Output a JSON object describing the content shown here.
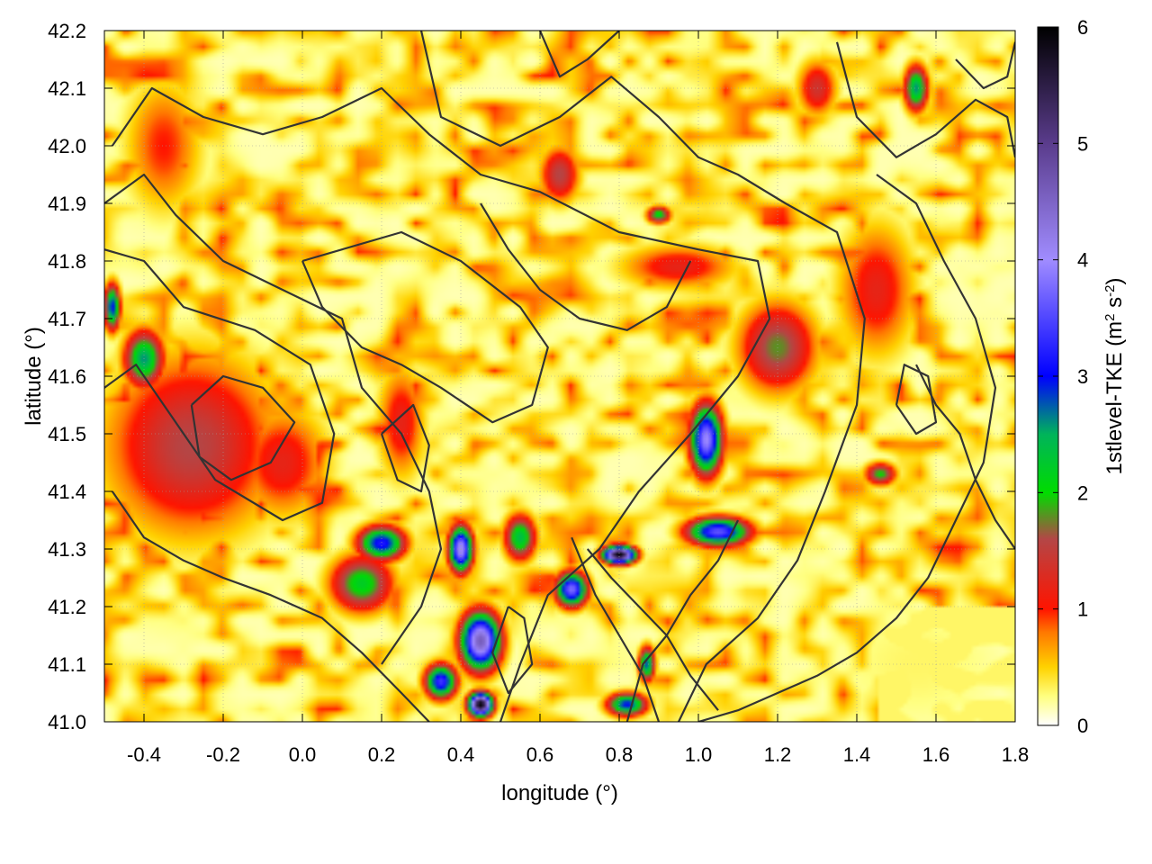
{
  "chart_data": {
    "type": "heatmap",
    "xlabel": "longitude (°)",
    "ylabel": "latitude (°)",
    "colorbar_label": "1stlevel-TKE (m",
    "colorbar_label_sup1": "2",
    "colorbar_label_mid": " s",
    "colorbar_label_sup2": "-2",
    "colorbar_label_end": ")",
    "xlim": [
      -0.5,
      1.8
    ],
    "ylim": [
      41.0,
      42.2
    ],
    "clim": [
      0,
      6
    ],
    "x_ticks": [
      "-0.4",
      "-0.2",
      "0.0",
      "0.2",
      "0.4",
      "0.6",
      "0.8",
      "1.0",
      "1.2",
      "1.4",
      "1.6",
      "1.8"
    ],
    "x_tick_values": [
      -0.4,
      -0.2,
      0.0,
      0.2,
      0.4,
      0.6,
      0.8,
      1.0,
      1.2,
      1.4,
      1.6,
      1.8
    ],
    "y_ticks": [
      "41.0",
      "41.1",
      "41.2",
      "41.3",
      "41.4",
      "41.5",
      "41.6",
      "41.7",
      "41.8",
      "41.9",
      "42.0",
      "42.1",
      "42.2"
    ],
    "y_tick_values": [
      41.0,
      41.1,
      41.2,
      41.3,
      41.4,
      41.5,
      41.6,
      41.7,
      41.8,
      41.9,
      42.0,
      42.1,
      42.2
    ],
    "colorbar_ticks": [
      "0",
      "1",
      "2",
      "3",
      "4",
      "5",
      "6"
    ],
    "colorbar_tick_values": [
      0,
      1,
      2,
      3,
      4,
      5,
      6
    ],
    "colormap": [
      {
        "v": 0.0,
        "c": "#ffffff"
      },
      {
        "v": 0.25,
        "c": "#ffff80"
      },
      {
        "v": 0.5,
        "c": "#ffd200"
      },
      {
        "v": 0.8,
        "c": "#ff7800"
      },
      {
        "v": 1.0,
        "c": "#ff1400"
      },
      {
        "v": 1.6,
        "c": "#b44646"
      },
      {
        "v": 2.0,
        "c": "#00dc00"
      },
      {
        "v": 2.5,
        "c": "#00b45a"
      },
      {
        "v": 3.0,
        "c": "#0000ff"
      },
      {
        "v": 4.0,
        "c": "#a08cff"
      },
      {
        "v": 5.0,
        "c": "#5a3c8c"
      },
      {
        "v": 6.0,
        "c": "#000000"
      }
    ],
    "grid": true,
    "hotspots": [
      {
        "lon": -0.28,
        "lat": 41.48,
        "tke": 1.6,
        "rlon": 0.22,
        "rlat": 0.16
      },
      {
        "lon": -0.4,
        "lat": 41.63,
        "tke": 2.6,
        "rlon": 0.05,
        "rlat": 0.05
      },
      {
        "lon": -0.05,
        "lat": 41.45,
        "tke": 1.2,
        "rlon": 0.12,
        "rlat": 0.1
      },
      {
        "lon": -0.35,
        "lat": 42.0,
        "tke": 1.0,
        "rlon": 0.1,
        "rlat": 0.12
      },
      {
        "lon": 0.2,
        "lat": 41.31,
        "tke": 3.2,
        "rlon": 0.06,
        "rlat": 0.03
      },
      {
        "lon": 0.15,
        "lat": 41.24,
        "tke": 2.2,
        "rlon": 0.08,
        "rlat": 0.05
      },
      {
        "lon": 0.4,
        "lat": 41.3,
        "tke": 4.2,
        "rlon": 0.03,
        "rlat": 0.04
      },
      {
        "lon": 0.45,
        "lat": 41.14,
        "tke": 4.6,
        "rlon": 0.05,
        "rlat": 0.05
      },
      {
        "lon": 0.45,
        "lat": 41.03,
        "tke": 6.0,
        "rlon": 0.03,
        "rlat": 0.02
      },
      {
        "lon": 0.35,
        "lat": 41.07,
        "tke": 3.4,
        "rlon": 0.04,
        "rlat": 0.03
      },
      {
        "lon": 0.8,
        "lat": 41.29,
        "tke": 6.0,
        "rlon": 0.04,
        "rlat": 0.015
      },
      {
        "lon": 0.68,
        "lat": 41.23,
        "tke": 3.8,
        "rlon": 0.04,
        "rlat": 0.03
      },
      {
        "lon": 1.05,
        "lat": 41.33,
        "tke": 3.6,
        "rlon": 0.08,
        "rlat": 0.025
      },
      {
        "lon": 1.02,
        "lat": 41.49,
        "tke": 4.0,
        "rlon": 0.04,
        "rlat": 0.06
      },
      {
        "lon": 1.2,
        "lat": 41.65,
        "tke": 1.8,
        "rlon": 0.1,
        "rlat": 0.08
      },
      {
        "lon": 0.82,
        "lat": 41.03,
        "tke": 3.0,
        "rlon": 0.05,
        "rlat": 0.02
      },
      {
        "lon": 0.87,
        "lat": 41.1,
        "tke": 2.8,
        "rlon": 0.02,
        "rlat": 0.03
      },
      {
        "lon": 0.25,
        "lat": 41.52,
        "tke": 1.2,
        "rlon": 0.06,
        "rlat": 0.1
      },
      {
        "lon": 1.45,
        "lat": 41.75,
        "tke": 1.2,
        "rlon": 0.1,
        "rlat": 0.12
      },
      {
        "lon": 0.65,
        "lat": 41.95,
        "tke": 1.6,
        "rlon": 0.05,
        "rlat": 0.05
      },
      {
        "lon": 0.9,
        "lat": 41.88,
        "tke": 2.2,
        "rlon": 0.03,
        "rlat": 0.015
      },
      {
        "lon": 1.55,
        "lat": 42.1,
        "tke": 2.6,
        "rlon": 0.03,
        "rlat": 0.04
      },
      {
        "lon": 1.3,
        "lat": 42.1,
        "tke": 1.4,
        "rlon": 0.05,
        "rlat": 0.05
      },
      {
        "lon": -0.48,
        "lat": 41.72,
        "tke": 3.0,
        "rlon": 0.02,
        "rlat": 0.04
      },
      {
        "lon": 0.95,
        "lat": 41.79,
        "tke": 1.2,
        "rlon": 0.15,
        "rlat": 0.04
      },
      {
        "lon": 0.55,
        "lat": 41.32,
        "tke": 2.4,
        "rlon": 0.04,
        "rlat": 0.04
      },
      {
        "lon": 1.46,
        "lat": 41.43,
        "tke": 2.0,
        "rlon": 0.04,
        "rlat": 0.02
      },
      {
        "lon": 1.55,
        "lat": 41.1,
        "tke": 0.3,
        "rlon": 0.3,
        "rlat": 0.15
      }
    ],
    "contours": [
      [
        [
          -0.5,
          41.58
        ],
        [
          -0.42,
          41.62
        ],
        [
          -0.35,
          41.55
        ],
        [
          -0.22,
          41.42
        ],
        [
          -0.05,
          41.35
        ],
        [
          0.05,
          41.38
        ],
        [
          0.08,
          41.5
        ],
        [
          0.02,
          41.62
        ],
        [
          -0.12,
          41.68
        ],
        [
          -0.3,
          41.72
        ],
        [
          -0.4,
          41.8
        ],
        [
          -0.5,
          41.82
        ]
      ],
      [
        [
          -0.5,
          41.9
        ],
        [
          -0.4,
          41.95
        ],
        [
          -0.32,
          41.88
        ],
        [
          -0.2,
          41.8
        ],
        [
          -0.05,
          41.75
        ],
        [
          0.1,
          41.7
        ],
        [
          0.15,
          41.58
        ],
        [
          0.25,
          41.5
        ],
        [
          0.32,
          41.4
        ],
        [
          0.35,
          41.3
        ],
        [
          0.3,
          41.2
        ],
        [
          0.2,
          41.1
        ]
      ],
      [
        [
          -0.48,
          42.0
        ],
        [
          -0.38,
          42.1
        ],
        [
          -0.25,
          42.05
        ],
        [
          -0.1,
          42.02
        ],
        [
          0.05,
          42.05
        ],
        [
          0.2,
          42.1
        ],
        [
          0.32,
          42.02
        ],
        [
          0.45,
          41.95
        ],
        [
          0.6,
          41.92
        ],
        [
          0.8,
          41.85
        ],
        [
          1.0,
          41.82
        ],
        [
          1.15,
          41.8
        ],
        [
          1.18,
          41.7
        ],
        [
          1.1,
          41.6
        ],
        [
          0.98,
          41.5
        ],
        [
          0.85,
          41.4
        ],
        [
          0.75,
          41.3
        ],
        [
          0.62,
          41.22
        ],
        [
          0.55,
          41.1
        ],
        [
          0.5,
          41.0
        ]
      ],
      [
        [
          0.3,
          42.2
        ],
        [
          0.35,
          42.05
        ],
        [
          0.5,
          42.0
        ],
        [
          0.65,
          42.05
        ],
        [
          0.78,
          42.12
        ],
        [
          0.9,
          42.05
        ],
        [
          1.0,
          41.98
        ],
        [
          1.1,
          41.95
        ],
        [
          1.22,
          41.9
        ],
        [
          1.35,
          41.85
        ],
        [
          1.42,
          41.7
        ],
        [
          1.4,
          41.55
        ],
        [
          1.32,
          41.4
        ],
        [
          1.25,
          41.28
        ],
        [
          1.15,
          41.18
        ],
        [
          1.02,
          41.1
        ],
        [
          0.95,
          41.0
        ]
      ],
      [
        [
          0.0,
          41.8
        ],
        [
          0.1,
          41.82
        ],
        [
          0.25,
          41.85
        ],
        [
          0.4,
          41.8
        ],
        [
          0.55,
          41.72
        ],
        [
          0.62,
          41.65
        ],
        [
          0.58,
          41.55
        ],
        [
          0.48,
          41.52
        ],
        [
          0.35,
          41.58
        ],
        [
          0.25,
          41.62
        ],
        [
          0.15,
          41.65
        ],
        [
          0.05,
          41.72
        ],
        [
          0.0,
          41.8
        ]
      ],
      [
        [
          1.45,
          41.95
        ],
        [
          1.55,
          41.9
        ],
        [
          1.62,
          41.8
        ],
        [
          1.7,
          41.7
        ],
        [
          1.75,
          41.58
        ],
        [
          1.72,
          41.45
        ],
        [
          1.65,
          41.35
        ],
        [
          1.58,
          41.25
        ],
        [
          1.5,
          41.18
        ],
        [
          1.4,
          41.12
        ],
        [
          1.3,
          41.08
        ],
        [
          1.2,
          41.05
        ],
        [
          1.1,
          41.02
        ],
        [
          1.0,
          41.0
        ]
      ],
      [
        [
          -0.48,
          41.4
        ],
        [
          -0.4,
          41.32
        ],
        [
          -0.3,
          41.28
        ],
        [
          -0.2,
          41.25
        ],
        [
          -0.08,
          41.22
        ],
        [
          0.05,
          41.18
        ],
        [
          0.15,
          41.12
        ],
        [
          0.25,
          41.05
        ],
        [
          0.32,
          41.0
        ]
      ],
      [
        [
          0.6,
          42.2
        ],
        [
          0.65,
          42.12
        ],
        [
          0.72,
          42.15
        ],
        [
          0.8,
          42.2
        ]
      ],
      [
        [
          1.35,
          42.18
        ],
        [
          1.4,
          42.05
        ],
        [
          1.5,
          41.98
        ],
        [
          1.6,
          42.02
        ],
        [
          1.7,
          42.08
        ],
        [
          1.78,
          42.05
        ],
        [
          1.8,
          41.98
        ]
      ],
      [
        [
          -0.28,
          41.55
        ],
        [
          -0.2,
          41.6
        ],
        [
          -0.1,
          41.58
        ],
        [
          -0.02,
          41.52
        ],
        [
          -0.08,
          41.45
        ],
        [
          -0.18,
          41.42
        ],
        [
          -0.26,
          41.46
        ],
        [
          -0.28,
          41.55
        ]
      ],
      [
        [
          0.72,
          41.3
        ],
        [
          0.78,
          41.25
        ],
        [
          0.85,
          41.2
        ],
        [
          0.92,
          41.15
        ],
        [
          0.98,
          41.08
        ],
        [
          1.05,
          41.02
        ]
      ],
      [
        [
          0.68,
          41.32
        ],
        [
          0.74,
          41.22
        ],
        [
          0.8,
          41.15
        ],
        [
          0.86,
          41.08
        ],
        [
          0.9,
          41.0
        ]
      ],
      [
        [
          1.1,
          41.35
        ],
        [
          1.05,
          41.28
        ],
        [
          0.98,
          41.22
        ],
        [
          0.92,
          41.15
        ],
        [
          0.86,
          41.1
        ],
        [
          0.82,
          41.0
        ]
      ],
      [
        [
          1.55,
          41.62
        ],
        [
          1.6,
          41.55
        ],
        [
          1.66,
          41.5
        ],
        [
          1.7,
          41.42
        ],
        [
          1.75,
          41.35
        ],
        [
          1.8,
          41.3
        ]
      ],
      [
        [
          0.45,
          41.9
        ],
        [
          0.52,
          41.82
        ],
        [
          0.6,
          41.75
        ],
        [
          0.7,
          41.7
        ],
        [
          0.82,
          41.68
        ],
        [
          0.92,
          41.72
        ],
        [
          0.98,
          41.8
        ]
      ],
      [
        [
          1.65,
          42.15
        ],
        [
          1.72,
          42.1
        ],
        [
          1.78,
          42.12
        ],
        [
          1.8,
          42.18
        ]
      ],
      [
        [
          1.5,
          41.55
        ],
        [
          1.55,
          41.5
        ],
        [
          1.6,
          41.52
        ],
        [
          1.58,
          41.6
        ],
        [
          1.52,
          41.62
        ],
        [
          1.5,
          41.55
        ]
      ],
      [
        [
          0.2,
          41.5
        ],
        [
          0.28,
          41.55
        ],
        [
          0.32,
          41.48
        ],
        [
          0.3,
          41.4
        ],
        [
          0.24,
          41.42
        ],
        [
          0.2,
          41.5
        ]
      ],
      [
        [
          0.52,
          41.2
        ],
        [
          0.48,
          41.12
        ],
        [
          0.52,
          41.05
        ],
        [
          0.58,
          41.1
        ],
        [
          0.56,
          41.18
        ],
        [
          0.52,
          41.2
        ]
      ]
    ]
  }
}
